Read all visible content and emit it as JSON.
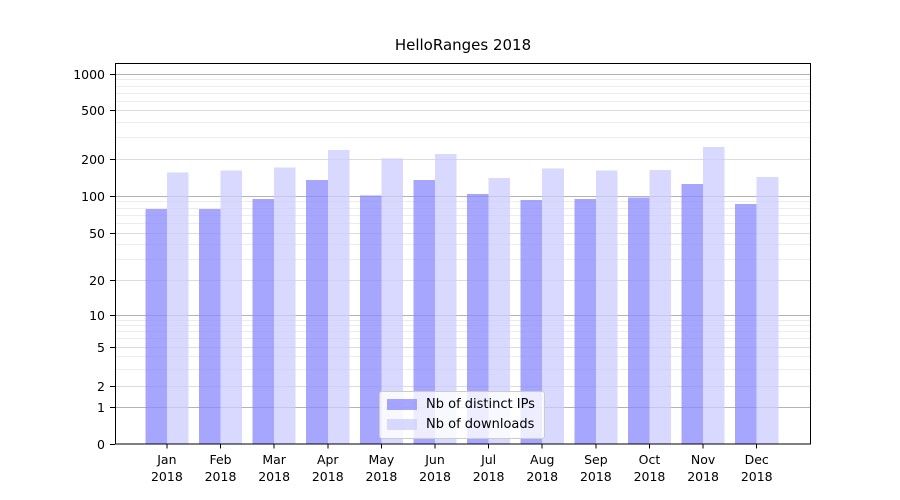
{
  "title": "HelloRanges 2018",
  "chart_data": {
    "type": "bar",
    "title": "HelloRanges 2018",
    "categories": [
      "Jan",
      "Feb",
      "Mar",
      "Apr",
      "May",
      "Jun",
      "Jul",
      "Aug",
      "Sep",
      "Oct",
      "Nov",
      "Dec"
    ],
    "x_tick_second_line": "2018",
    "series": [
      {
        "name": "Nb of distinct IPs",
        "color": "#8888ff",
        "fill_opacity": 0.75,
        "values": [
          78,
          78,
          94,
          135,
          100,
          135,
          103,
          92,
          94,
          97,
          125,
          86
        ]
      },
      {
        "name": "Nb of downloads",
        "color": "#ccccff",
        "fill_opacity": 0.75,
        "values": [
          155,
          161,
          170,
          236,
          202,
          219,
          140,
          167,
          161,
          163,
          250,
          143
        ]
      }
    ],
    "yscale": "symlog",
    "y_ticks": [
      0,
      1,
      2,
      5,
      10,
      20,
      50,
      100,
      200,
      500,
      1000
    ],
    "ylim": [
      0,
      1200
    ],
    "grid": true,
    "legend_position": "bottom-center",
    "colors": {
      "grid_major": "#b3b3b3",
      "grid_mid": "#dcdcdc",
      "grid_minor": "#ececec",
      "axis": "#000000",
      "text": "#000000"
    }
  },
  "legend": {
    "items": [
      {
        "label": "Nb of distinct IPs"
      },
      {
        "label": "Nb of downloads"
      }
    ]
  }
}
